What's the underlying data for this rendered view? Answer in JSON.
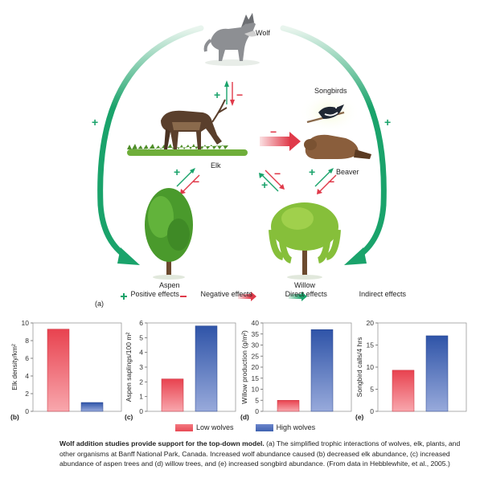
{
  "diagram": {
    "organisms": {
      "wolf": "Wolf",
      "elk": "Elk",
      "songbirds": "Songbirds",
      "beaver": "Beaver",
      "aspen": "Aspen",
      "willow": "Willow"
    },
    "panel_label": "(a)",
    "plus_sign": "+",
    "minus_sign": "−",
    "legend": {
      "positive": "Positive effects",
      "negative": "Negative effects",
      "direct": "Direct effects",
      "indirect": "Indirect effects"
    },
    "colors": {
      "positive": "#1aa36b",
      "negative": "#e03a4a"
    }
  },
  "chart_data": [
    {
      "type": "bar",
      "panel": "(b)",
      "ylabel": "Elk density/km²",
      "ylim": [
        0,
        10
      ],
      "yticks": [
        0,
        2,
        4,
        6,
        8,
        10
      ],
      "categories": [
        "Low wolves",
        "High wolves"
      ],
      "values": [
        9.3,
        1.0
      ]
    },
    {
      "type": "bar",
      "panel": "(c)",
      "ylabel": "Aspen saplings/100 m²",
      "ylim": [
        0,
        6
      ],
      "yticks": [
        0,
        1,
        2,
        3,
        4,
        5,
        6
      ],
      "categories": [
        "Low wolves",
        "High wolves"
      ],
      "values": [
        2.2,
        5.8
      ]
    },
    {
      "type": "bar",
      "panel": "(d)",
      "ylabel": "Willow production (g/m²)",
      "ylim": [
        0,
        40
      ],
      "yticks": [
        0,
        5,
        10,
        15,
        20,
        25,
        30,
        35,
        40
      ],
      "categories": [
        "Low wolves",
        "High wolves"
      ],
      "values": [
        5,
        37
      ]
    },
    {
      "type": "bar",
      "panel": "(e)",
      "ylabel": "Songbird calls/4 hrs",
      "ylim": [
        0,
        20
      ],
      "yticks": [
        0,
        5,
        10,
        15,
        20
      ],
      "categories": [
        "Low wolves",
        "High wolves"
      ],
      "values": [
        9.3,
        17.1
      ]
    }
  ],
  "bar_legend": {
    "low": "Low wolves",
    "high": "High wolves",
    "low_color": "#e84a55",
    "high_color": "#3f62b0"
  },
  "caption": {
    "title": "Wolf addition studies provide support for the top-down model.",
    "body": "(a) The simplified trophic interactions of wolves, elk, plants, and other organisms at Banff National Park, Canada. Increased wolf abundance caused (b) decreased elk abundance, (c) increased abundance of aspen trees and (d) willow trees, and (e) increased songbird abundance. (From data in Hebblewhite, et al., 2005.)"
  }
}
